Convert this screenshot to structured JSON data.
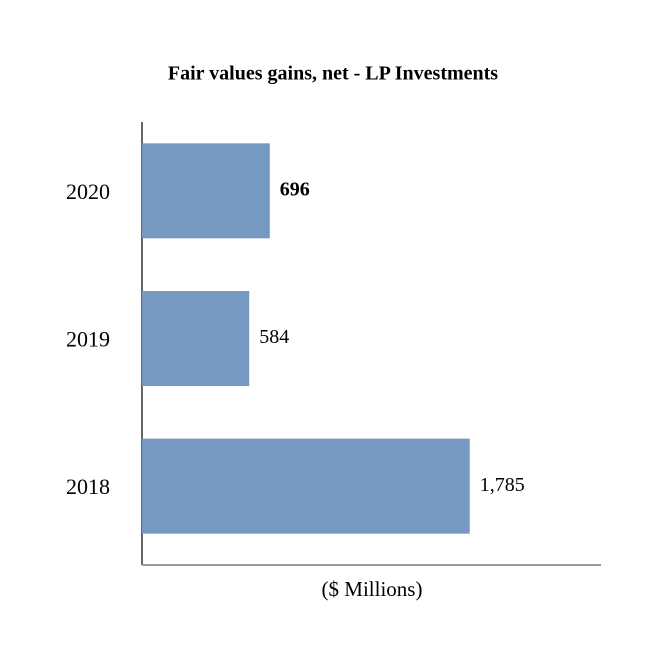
{
  "chart_data": {
    "type": "hbar",
    "title": "Fair values gains, net - LP Investments",
    "categories": [
      "2020",
      "2019",
      "2018"
    ],
    "values": [
      696,
      584,
      1785
    ],
    "value_labels": [
      "696",
      "584",
      "1,785"
    ],
    "color": "#7599c1",
    "xlabel": "($ Millions)",
    "xlim": [
      0,
      2500
    ]
  }
}
